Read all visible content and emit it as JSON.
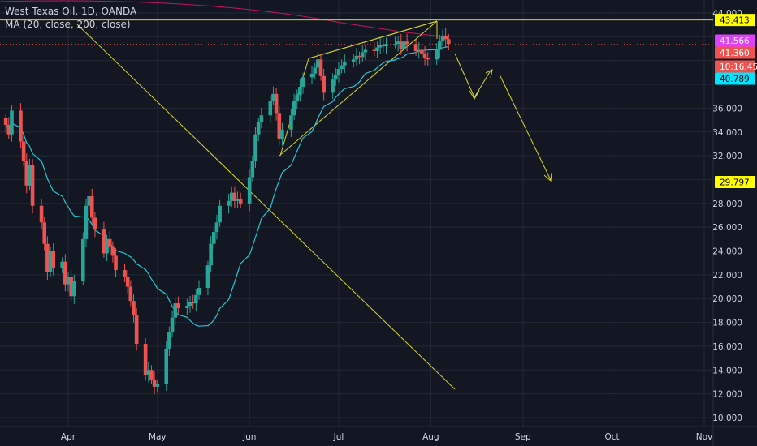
{
  "chart_data": {
    "type": "candlestick",
    "title": "West Texas Oil, 1D, OANDA",
    "indicator": "MA (20, close, 200, close)",
    "x_ticks": [
      "Apr",
      "May",
      "Jun",
      "Jul",
      "Aug",
      "Sep",
      "Oct",
      "Nov"
    ],
    "y_ticks": [
      "10.000",
      "12.000",
      "14.000",
      "16.000",
      "18.000",
      "20.000",
      "22.000",
      "24.000",
      "26.000",
      "28.000",
      "32.000",
      "34.000",
      "36.000",
      "44.000"
    ],
    "ylim": [
      9.5,
      45.0
    ],
    "price_labels": [
      {
        "text": "43.413",
        "value": 43.413,
        "kind": "yellow"
      },
      {
        "text": "41.566",
        "value": 41.566,
        "kind": "magenta"
      },
      {
        "text": "41.360",
        "value": 41.36,
        "kind": "red"
      },
      {
        "text": "10:16:45",
        "value": 40.1,
        "kind": "red"
      },
      {
        "text": "40.789",
        "value": 40.789,
        "kind": "cyan"
      },
      {
        "text": "29.797",
        "value": 29.797,
        "kind": "yellow"
      }
    ],
    "horizontal_levels": [
      43.413,
      29.797
    ],
    "last_price": 41.36,
    "date_start": "2020-03-11",
    "closes": [
      34.6,
      33.8,
      35.8,
      33.2,
      31.6,
      29.5,
      31.2,
      27.8,
      26.4,
      24.6,
      22.2,
      24.0,
      22.6,
      23.1,
      21.2,
      21.8,
      20.2,
      21.5,
      25.0,
      27.8,
      28.6,
      26.8,
      25.8,
      23.8,
      25.0,
      24.4,
      23.6,
      22.4,
      21.8,
      21.0,
      19.8,
      18.6,
      16.2,
      13.6,
      14.0,
      13.2,
      12.6,
      12.8,
      15.8,
      17.2,
      18.4,
      19.6,
      19.2,
      19.4,
      19.7,
      19.6,
      20.3,
      20.9,
      22.8,
      24.6,
      25.6,
      26.4,
      27.8,
      28.2,
      28.9,
      28.2,
      28.4,
      28.0,
      30.2,
      31.6,
      33.8,
      34.8,
      35.4,
      36.6,
      37.2,
      35.6,
      33.4,
      34.2,
      35.4,
      36.6,
      37.1,
      37.8,
      38.6,
      38.9,
      39.4,
      40.1,
      38.7,
      37.3,
      38.4,
      38.8,
      39.3,
      39.6,
      39.9,
      40.1,
      40.4,
      40.3,
      40.7,
      40.9,
      40.8,
      41.1,
      41.3,
      41.2,
      41.4,
      41.4,
      41.6,
      41.0,
      41.6,
      41.4,
      40.8,
      40.9,
      40.6,
      40.2,
      40.1,
      40.9,
      41.6,
      42.1,
      41.8,
      41.4
    ],
    "series": [
      {
        "name": "MA (20, close, 200, close)",
        "color": "#26c6da"
      }
    ],
    "colors": {
      "up": "#26a69a",
      "down": "#ef5350",
      "ma": "#26c6da",
      "drawing": "#d6d62b",
      "ma200": "#c2185b",
      "grid": "#232838",
      "axis_text": "#d1d4dc",
      "background": "#131722"
    }
  }
}
